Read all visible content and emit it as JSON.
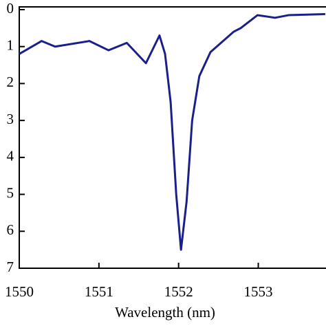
{
  "chart_data": {
    "type": "line",
    "xlabel": "Wavelength (nm)",
    "x": [
      1550,
      1550.28,
      1550.45,
      1550.88,
      1551.12,
      1551.35,
      1551.59,
      1551.76,
      1551.83,
      1551.9,
      1551.97,
      1552.03,
      1552.1,
      1552.17,
      1552.26,
      1552.4,
      1552.69,
      1552.78,
      1552.99,
      1553.21,
      1553.38,
      1553.84
    ],
    "series": [
      {
        "color": "#1a1f8c",
        "values": [
          1.2,
          0.85,
          1.0,
          0.85,
          1.1,
          0.9,
          1.45,
          0.7,
          1.2,
          2.5,
          5.0,
          6.5,
          5.2,
          3.0,
          1.8,
          1.15,
          0.6,
          0.5,
          0.15,
          0.22,
          0.15,
          0.12
        ]
      }
    ],
    "xlim": [
      1550,
      1553.85
    ],
    "xticks": [
      1550,
      1551,
      1552,
      1553
    ],
    "ylim": [
      7,
      0
    ],
    "yticks": [
      0,
      1,
      2,
      3,
      4,
      5,
      6,
      7
    ]
  }
}
